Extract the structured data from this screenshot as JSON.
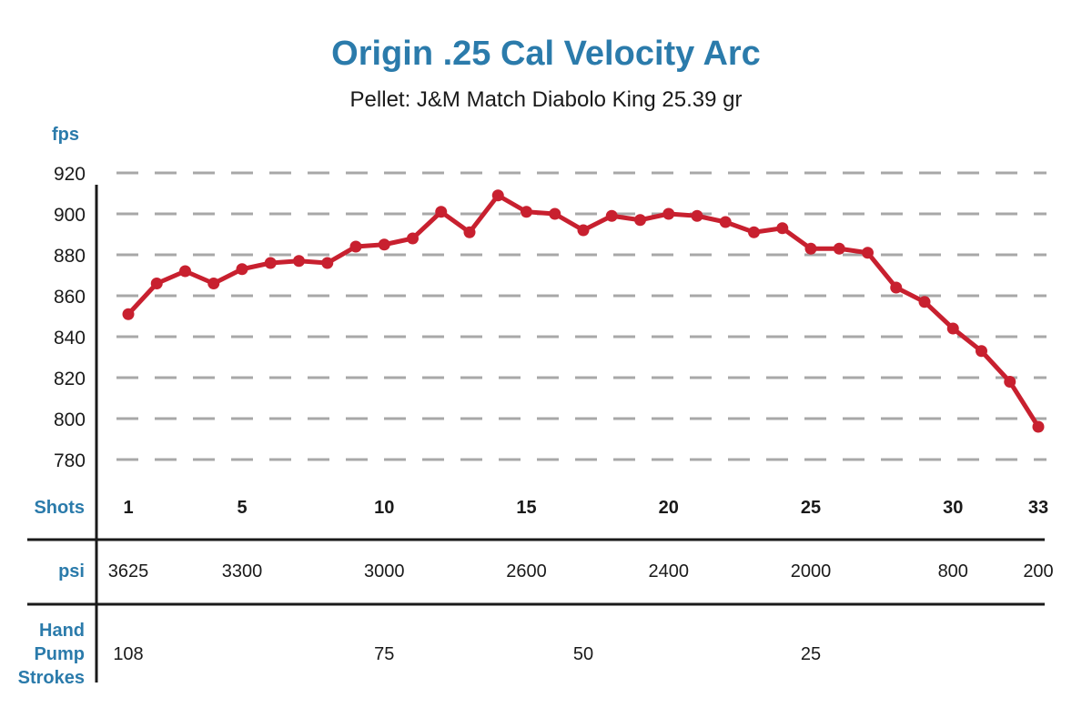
{
  "chart_data": {
    "type": "line",
    "title": "Origin .25 Cal Velocity Arc",
    "subtitle": "Pellet: J&M Match Diabolo King 25.39 gr",
    "ylabel": "fps",
    "xlabel": "Shots",
    "ylim": [
      780,
      920
    ],
    "yticks": [
      920,
      900,
      880,
      860,
      840,
      820,
      800,
      780
    ],
    "grid": true,
    "line_color": "#c8202f",
    "x": [
      1,
      2,
      3,
      4,
      5,
      6,
      7,
      8,
      9,
      10,
      11,
      12,
      13,
      14,
      15,
      16,
      17,
      18,
      19,
      20,
      21,
      22,
      23,
      24,
      25,
      26,
      27,
      28,
      29,
      30,
      31,
      32,
      33
    ],
    "values": [
      851,
      866,
      872,
      866,
      873,
      876,
      877,
      876,
      884,
      885,
      888,
      901,
      891,
      909,
      901,
      900,
      892,
      899,
      897,
      900,
      899,
      896,
      891,
      893,
      883,
      883,
      881,
      864,
      857,
      844,
      833,
      818,
      796
    ],
    "shot_ticks": [
      "1",
      "5",
      "10",
      "15",
      "20",
      "25",
      "30",
      "33"
    ],
    "psi_label": "psi",
    "psi_ticks": [
      {
        "shot": 1,
        "label": "3625"
      },
      {
        "shot": 5,
        "label": "3300"
      },
      {
        "shot": 10,
        "label": "3000"
      },
      {
        "shot": 15,
        "label": "2600"
      },
      {
        "shot": 20,
        "label": "2400"
      },
      {
        "shot": 25,
        "label": "2000"
      },
      {
        "shot": 30,
        "label": "800"
      },
      {
        "shot": 33,
        "label": "200"
      }
    ],
    "strokes_label": [
      "Hand",
      "Pump",
      "Strokes"
    ],
    "strokes_ticks": [
      {
        "shot": 1,
        "label": "108"
      },
      {
        "shot": 10,
        "label": "75"
      },
      {
        "shot": 17,
        "label": "50"
      },
      {
        "shot": 25,
        "label": "25"
      }
    ],
    "accent_color": "#2b7bab"
  }
}
